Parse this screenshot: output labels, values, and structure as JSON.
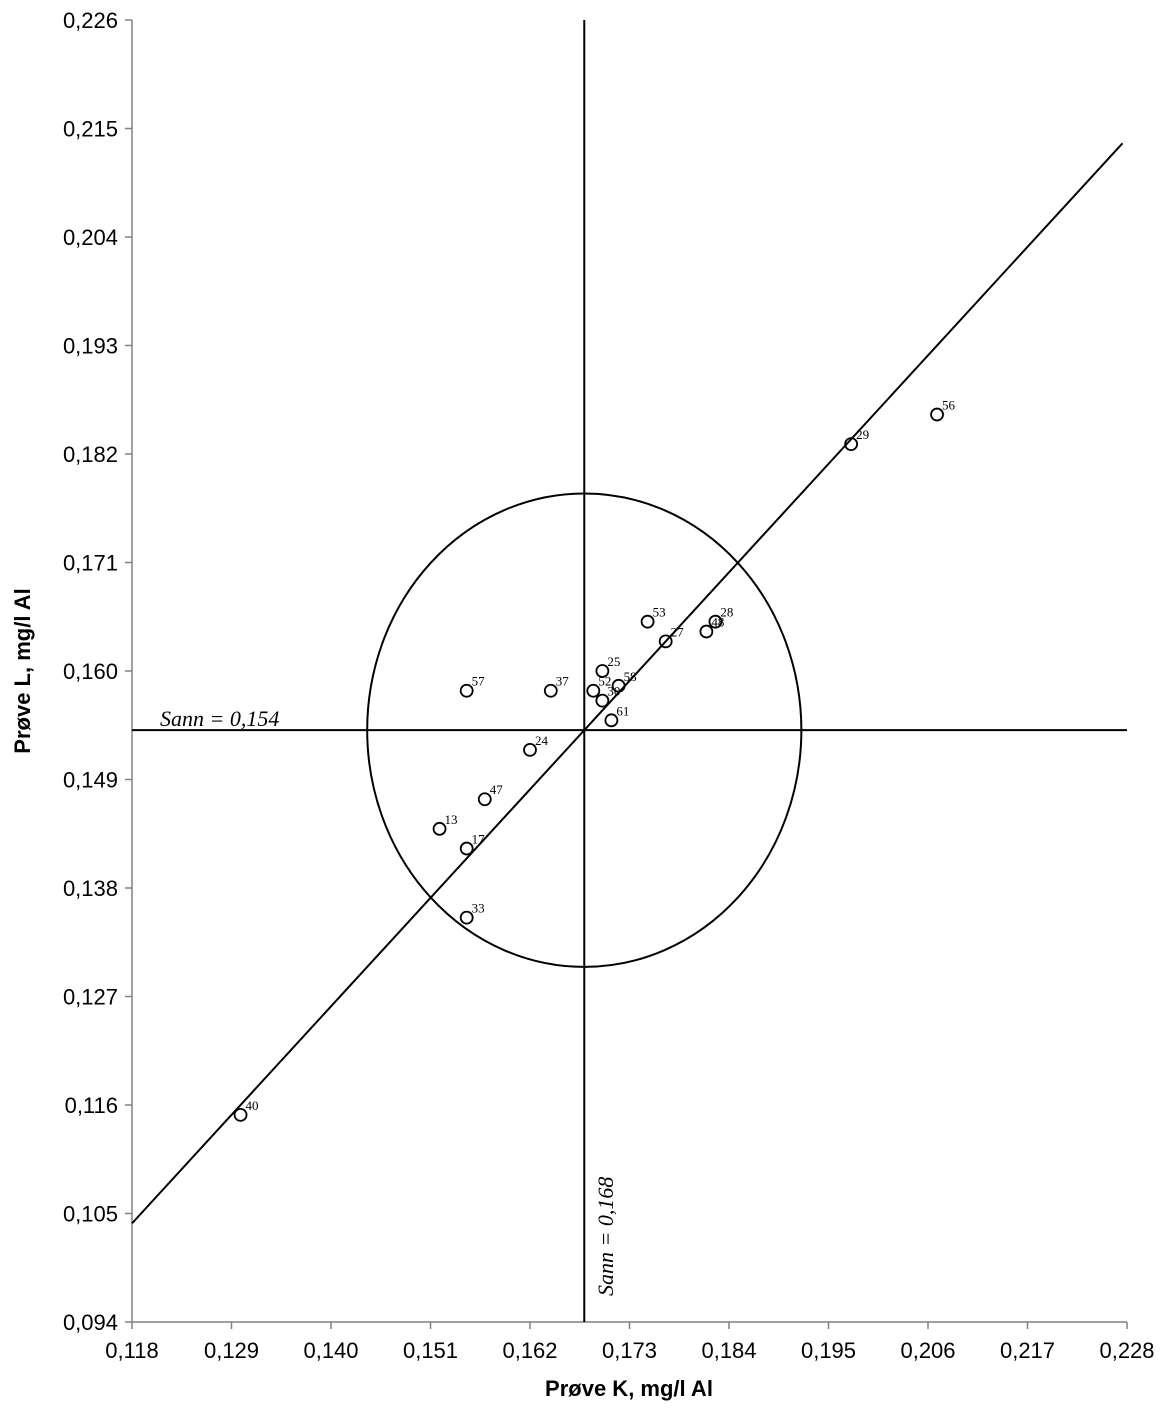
{
  "chart_data": {
    "type": "scatter",
    "title": "",
    "xlabel": "Prøve K, mg/l Al",
    "ylabel": "Prøve L, mg/l Al",
    "xlim": [
      0.118,
      0.228
    ],
    "ylim": [
      0.094,
      0.226
    ],
    "x_ticks": [
      "0,118",
      "0,129",
      "0,140",
      "0,151",
      "0,162",
      "0,173",
      "0,184",
      "0,195",
      "0,206",
      "0,217",
      "0,228"
    ],
    "y_ticks": [
      "0,094",
      "0,105",
      "0,116",
      "0,127",
      "0,138",
      "0,149",
      "0,160",
      "0,171",
      "0,182",
      "0,193",
      "0,204",
      "0,215",
      "0,226"
    ],
    "true_x": 0.168,
    "true_y": 0.154,
    "true_x_label": "Sann = 0,168",
    "true_y_label": "Sann = 0,154",
    "circle": {
      "center": [
        0.168,
        0.154
      ],
      "radius_x": 0.024,
      "radius_y": 0.024
    },
    "grid": false,
    "points": [
      {
        "label": "56",
        "x": 0.207,
        "y": 0.186
      },
      {
        "label": "29",
        "x": 0.1975,
        "y": 0.183
      },
      {
        "label": "28",
        "x": 0.1825,
        "y": 0.165
      },
      {
        "label": "48",
        "x": 0.1815,
        "y": 0.164
      },
      {
        "label": "53",
        "x": 0.175,
        "y": 0.165
      },
      {
        "label": "27",
        "x": 0.177,
        "y": 0.163
      },
      {
        "label": "25",
        "x": 0.17,
        "y": 0.16
      },
      {
        "label": "58",
        "x": 0.1718,
        "y": 0.1585
      },
      {
        "label": "52",
        "x": 0.169,
        "y": 0.158
      },
      {
        "label": "30",
        "x": 0.17,
        "y": 0.157
      },
      {
        "label": "61",
        "x": 0.171,
        "y": 0.155
      },
      {
        "label": "57",
        "x": 0.155,
        "y": 0.158
      },
      {
        "label": "37",
        "x": 0.1643,
        "y": 0.158
      },
      {
        "label": "24",
        "x": 0.162,
        "y": 0.152
      },
      {
        "label": "47",
        "x": 0.157,
        "y": 0.147
      },
      {
        "label": "13",
        "x": 0.152,
        "y": 0.144
      },
      {
        "label": "17",
        "x": 0.155,
        "y": 0.142
      },
      {
        "label": "33",
        "x": 0.155,
        "y": 0.135
      },
      {
        "label": "40",
        "x": 0.13,
        "y": 0.115
      }
    ]
  }
}
